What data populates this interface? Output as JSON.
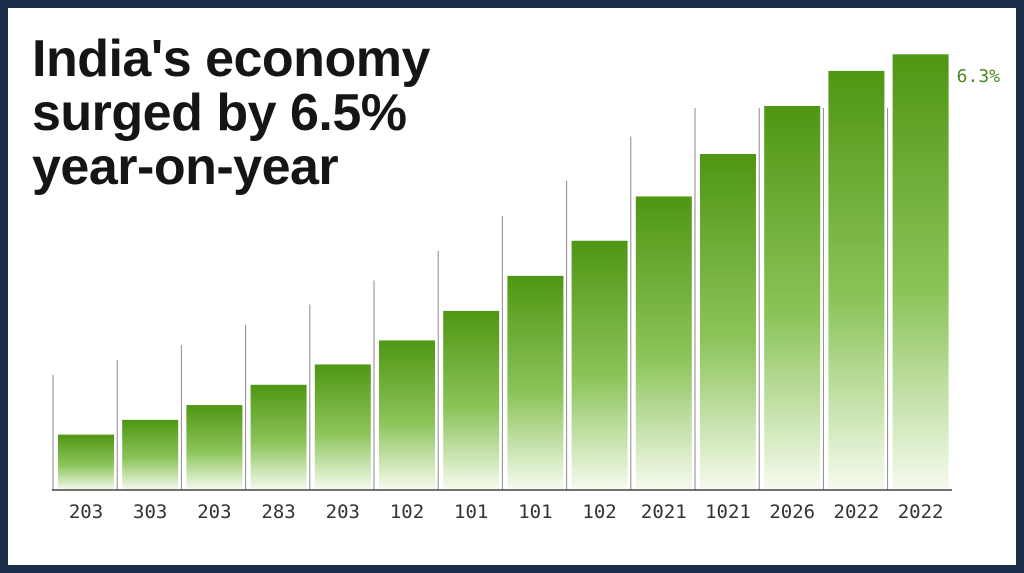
{
  "headline": {
    "line1": "India's economy",
    "line2": "surged by 6.5%",
    "line3": "year-on-year"
  },
  "top_value_label": "6.3%",
  "colors": {
    "bar_top": "#4f9613",
    "bar_bottom": "#f6fbef",
    "frame": "#1a2e4a",
    "gridline": "#7a7a7a"
  },
  "chart_data": {
    "type": "bar",
    "title": "India's economy surged by 6.5% year-on-year",
    "categories": [
      "203",
      "303",
      "203",
      "283",
      "203",
      "102",
      "101",
      "101",
      "102",
      "2021",
      "1021",
      "2026",
      "2022",
      "2022"
    ],
    "values": [
      15,
      19,
      23,
      28.5,
      34,
      40.5,
      48.5,
      58,
      67.5,
      79.5,
      91,
      104,
      113.5,
      118
    ],
    "ylim": [
      0,
      130
    ],
    "grid": "vertical",
    "annotations": [
      "6.3%"
    ]
  }
}
